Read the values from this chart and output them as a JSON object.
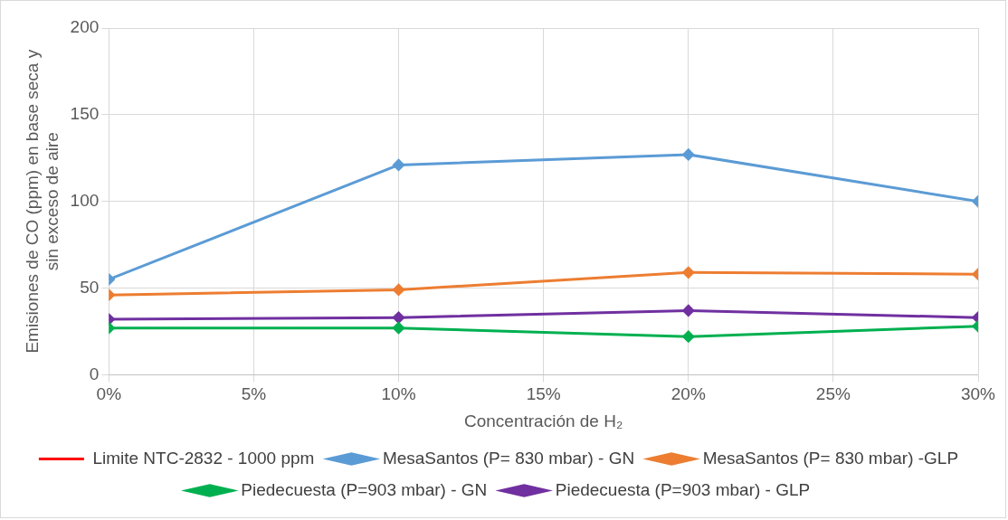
{
  "chart_data": {
    "type": "line",
    "xlabel": "Concentración de H₂",
    "ylabel": "Emisiones de CO (ppm) en base seca y sin exceso de aire",
    "x": [
      0,
      10,
      20,
      30
    ],
    "xlim": [
      0,
      30
    ],
    "xticks": [
      {
        "value": 0,
        "label": "0%"
      },
      {
        "value": 5,
        "label": "5%"
      },
      {
        "value": 10,
        "label": "10%"
      },
      {
        "value": 15,
        "label": "15%"
      },
      {
        "value": 20,
        "label": "20%"
      },
      {
        "value": 25,
        "label": "25%"
      },
      {
        "value": 30,
        "label": "30%"
      }
    ],
    "ylim": [
      0,
      200
    ],
    "yticks": [
      0,
      50,
      100,
      150,
      200
    ],
    "grid": true,
    "legend": "bottom",
    "marker": "diamond",
    "series": [
      {
        "name": "Limite NTC-2832 - 1000 ppm",
        "color": "#ff0000",
        "marker": "none",
        "values": [
          null,
          null,
          null,
          null
        ]
      },
      {
        "name": "MesaSantos (P= 830 mbar) - GN",
        "color": "#5b9bd5",
        "values": [
          55,
          121,
          127,
          100
        ]
      },
      {
        "name": "MesaSantos (P= 830 mbar) -GLP",
        "color": "#ed7d31",
        "values": [
          46,
          49,
          59,
          58
        ]
      },
      {
        "name": "Piedecuesta (P=903 mbar) - GN",
        "color": "#00b050",
        "values": [
          27,
          27,
          22,
          28
        ]
      },
      {
        "name": "Piedecuesta (P=903 mbar) - GLP",
        "color": "#7030a0",
        "values": [
          32,
          33,
          37,
          33
        ]
      }
    ]
  }
}
